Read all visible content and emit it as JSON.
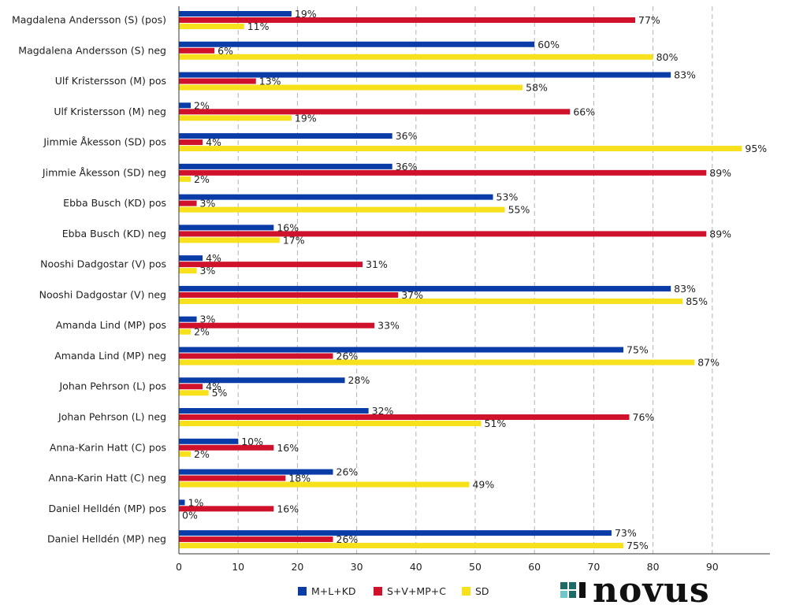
{
  "chart_data": {
    "type": "bar",
    "orientation": "horizontal",
    "categories": [
      "Magdalena Andersson (S) (pos)",
      "Magdalena Andersson (S) neg",
      "Ulf Kristersson (M) pos",
      "Ulf Kristersson (M) neg",
      "Jimmie Åkesson (SD) pos",
      "Jimmie Åkesson (SD) neg",
      "Ebba Busch (KD) pos",
      "Ebba Busch (KD) neg",
      "Nooshi Dadgostar (V) pos",
      "Nooshi Dadgostar (V) neg",
      "Amanda Lind (MP) pos",
      "Amanda Lind (MP) neg",
      "Johan Pehrson (L) pos",
      "Johan Pehrson (L) neg",
      "Anna-Karin Hatt (C) pos",
      "Anna-Karin Hatt (C) neg",
      "Daniel Helldén (MP) pos",
      "Daniel Helldén (MP) neg"
    ],
    "series": [
      {
        "name": "M+L+KD",
        "color": "#0a3ca8",
        "values": [
          19,
          60,
          83,
          2,
          36,
          36,
          53,
          16,
          4,
          83,
          3,
          75,
          28,
          32,
          10,
          26,
          1,
          73
        ],
        "labels": [
          "19%",
          "60%",
          "83%",
          "2%",
          "36%",
          "36%",
          "53%",
          "16%",
          "4%",
          "83%",
          "3%",
          "75%",
          "28%",
          "32%",
          "10%",
          "26%",
          "1%",
          "73%"
        ]
      },
      {
        "name": "S+V+MP+C",
        "color": "#d0112b",
        "values": [
          77,
          6,
          13,
          66,
          4,
          89,
          3,
          89,
          31,
          37,
          33,
          26,
          4,
          76,
          16,
          18,
          16,
          26
        ],
        "labels": [
          "77%",
          "6%",
          "13%",
          "66%",
          "4%",
          "89%",
          "3%",
          "89%",
          "31%",
          "37%",
          "33%",
          "26%",
          "4%",
          "76%",
          "16%",
          "18%",
          "16%",
          "26%"
        ]
      },
      {
        "name": "SD",
        "color": "#f7e11c",
        "values": [
          11,
          80,
          58,
          19,
          95,
          2,
          55,
          17,
          3,
          85,
          2,
          87,
          5,
          51,
          2,
          49,
          0,
          75
        ],
        "labels": [
          "11%",
          "80%",
          "58%",
          "19%",
          "95%",
          "2%",
          "55%",
          "17%",
          "3%",
          "85%",
          "2%",
          "87%",
          "5%",
          "51%",
          "2%",
          "49%",
          "0%",
          "75%"
        ]
      }
    ],
    "x_ticks": [
      "0",
      "10",
      "20",
      "30",
      "40",
      "50",
      "60",
      "70",
      "80",
      "90"
    ],
    "xlim": [
      0,
      100
    ],
    "grid": "vertical dashed",
    "legend_position": "bottom"
  },
  "logo": {
    "text": "novus"
  }
}
